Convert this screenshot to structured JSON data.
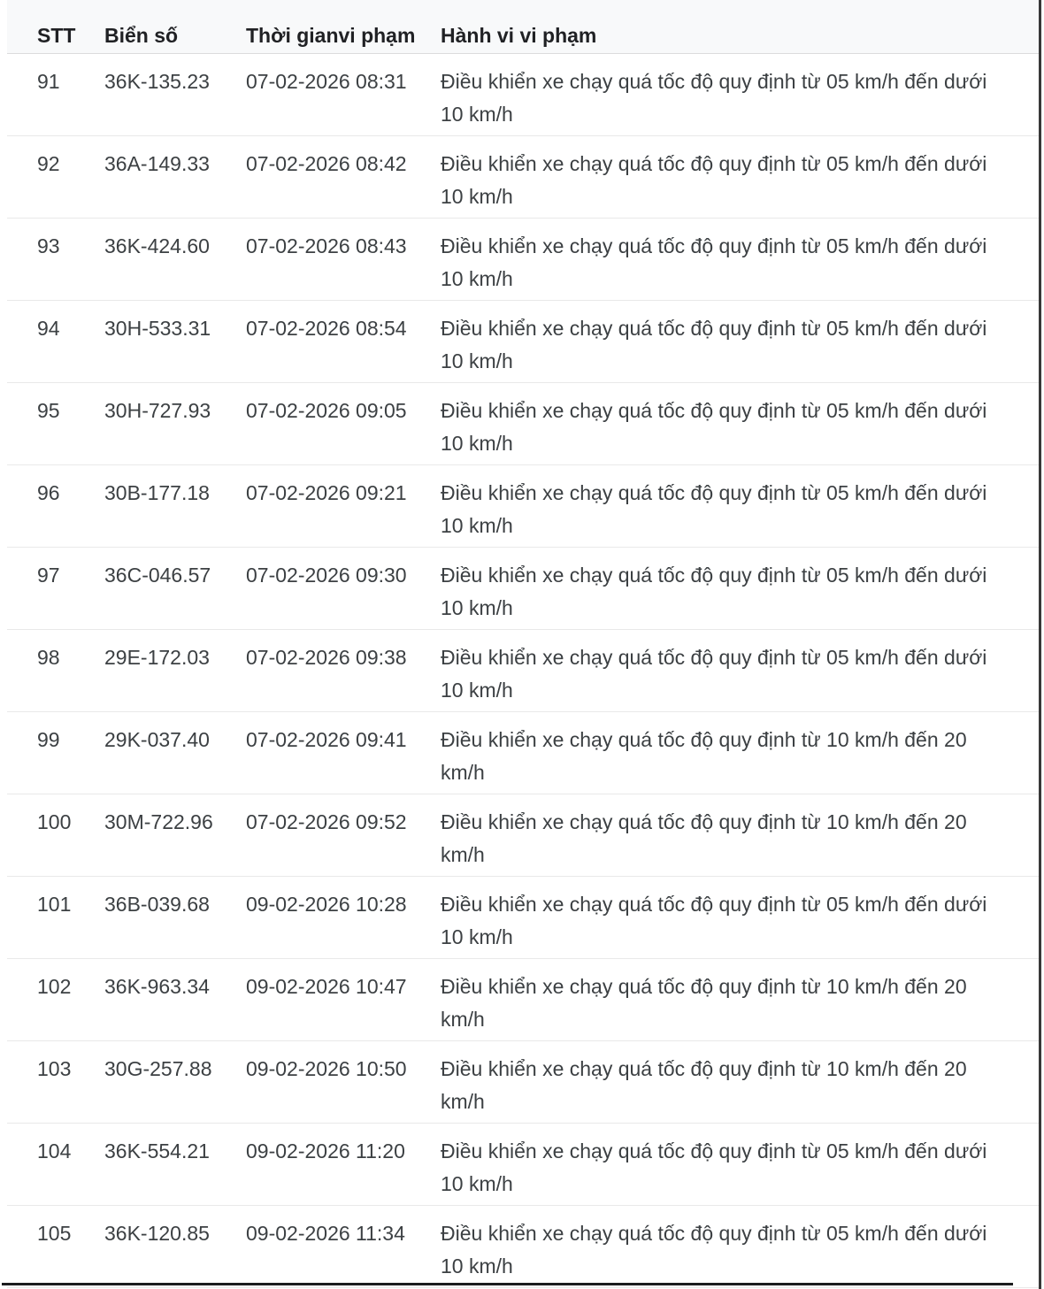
{
  "table": {
    "columns": [
      {
        "key": "stt",
        "label": "STT"
      },
      {
        "key": "plate",
        "label": "Biển số"
      },
      {
        "key": "time",
        "label": "Thời gianvi phạm"
      },
      {
        "key": "violation",
        "label": "Hành vi vi phạm"
      }
    ],
    "rows": [
      {
        "stt": "91",
        "plate": "36K-135.23",
        "time": "07-02-2026 08:31",
        "violation": "Điều khiển xe chạy quá tốc độ quy định từ 05 km/h đến dưới 10 km/h"
      },
      {
        "stt": "92",
        "plate": "36A-149.33",
        "time": "07-02-2026 08:42",
        "violation": "Điều khiển xe chạy quá tốc độ quy định từ 05 km/h đến dưới 10 km/h"
      },
      {
        "stt": "93",
        "plate": "36K-424.60",
        "time": "07-02-2026 08:43",
        "violation": "Điều khiển xe chạy quá tốc độ quy định từ 05 km/h đến dưới 10 km/h"
      },
      {
        "stt": "94",
        "plate": "30H-533.31",
        "time": "07-02-2026 08:54",
        "violation": "Điều khiển xe chạy quá tốc độ quy định từ 05 km/h đến dưới 10 km/h"
      },
      {
        "stt": "95",
        "plate": "30H-727.93",
        "time": "07-02-2026 09:05",
        "violation": "Điều khiển xe chạy quá tốc độ quy định từ 05 km/h đến dưới 10 km/h"
      },
      {
        "stt": "96",
        "plate": "30B-177.18",
        "time": "07-02-2026 09:21",
        "violation": "Điều khiển xe chạy quá tốc độ quy định từ 05 km/h đến dưới 10 km/h"
      },
      {
        "stt": "97",
        "plate": "36C-046.57",
        "time": "07-02-2026 09:30",
        "violation": "Điều khiển xe chạy quá tốc độ quy định từ 05 km/h đến dưới 10 km/h"
      },
      {
        "stt": "98",
        "plate": "29E-172.03",
        "time": "07-02-2026 09:38",
        "violation": "Điều khiển xe chạy quá tốc độ quy định từ 05 km/h đến dưới 10 km/h"
      },
      {
        "stt": "99",
        "plate": "29K-037.40",
        "time": "07-02-2026 09:41",
        "violation": "Điều khiển xe chạy quá tốc độ quy định từ 10 km/h đến 20 km/h"
      },
      {
        "stt": "100",
        "plate": "30M-722.96",
        "time": "07-02-2026 09:52",
        "violation": "Điều khiển xe chạy quá tốc độ quy định từ 10 km/h đến 20 km/h"
      },
      {
        "stt": "101",
        "plate": "36B-039.68",
        "time": "09-02-2026 10:28",
        "violation": "Điều khiển xe chạy quá tốc độ quy định từ 05 km/h đến dưới 10 km/h"
      },
      {
        "stt": "102",
        "plate": "36K-963.34",
        "time": "09-02-2026 10:47",
        "violation": "Điều khiển xe chạy quá tốc độ quy định từ 10 km/h đến 20 km/h"
      },
      {
        "stt": "103",
        "plate": "30G-257.88",
        "time": "09-02-2026 10:50",
        "violation": "Điều khiển xe chạy quá tốc độ quy định từ 10 km/h đến 20 km/h"
      },
      {
        "stt": "104",
        "plate": "36K-554.21",
        "time": "09-02-2026 11:20",
        "violation": "Điều khiển xe chạy quá tốc độ quy định từ 05 km/h đến dưới 10 km/h"
      },
      {
        "stt": "105",
        "plate": "36K-120.85",
        "time": "09-02-2026 11:34",
        "violation": "Điều khiển xe chạy quá tốc độ quy định từ 05 km/h đến dưới 10 km/h"
      }
    ]
  },
  "colors": {
    "header_bg": "#f8f9fa",
    "header_text": "#202124",
    "header_border": "#dcdcdc",
    "body_text": "#3c4043",
    "row_border": "#e9e9e9",
    "bottom_bar": "#1b1c1e",
    "edge_line": "#383838"
  }
}
